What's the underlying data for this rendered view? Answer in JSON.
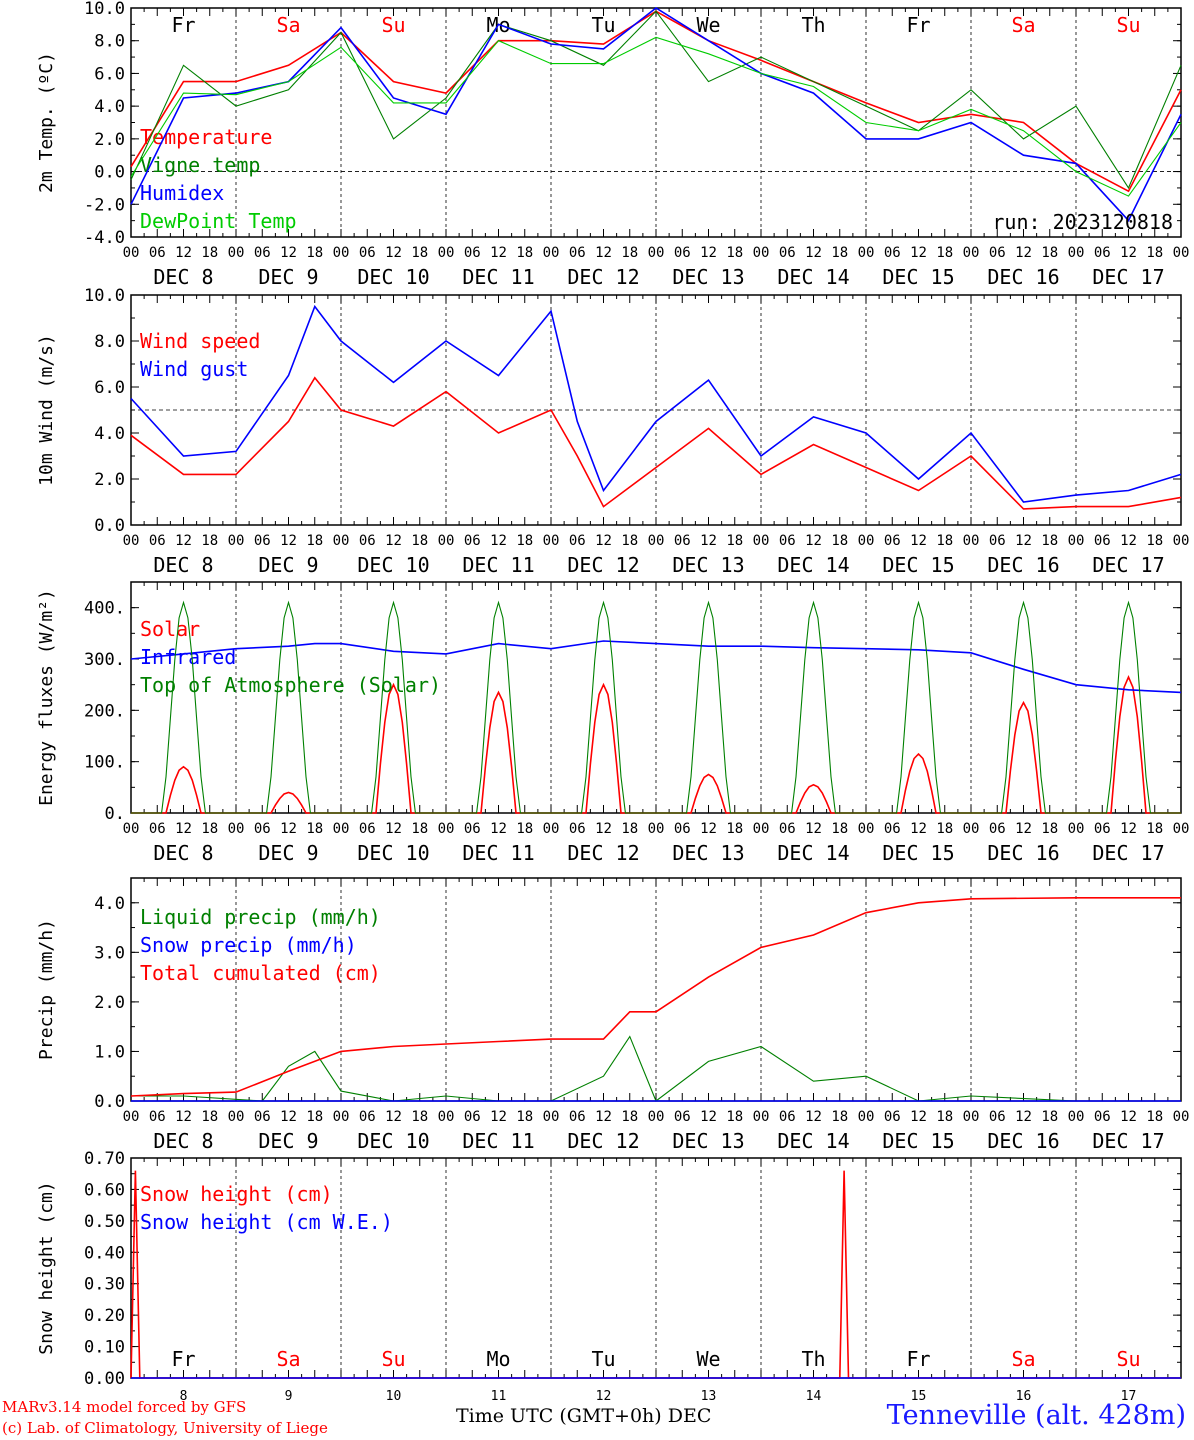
{
  "days": [
    {
      "name": "Fr",
      "date": "DEC  8",
      "num": "8",
      "color": "#000000"
    },
    {
      "name": "Sa",
      "date": "DEC  9",
      "num": "9",
      "color": "#ff0000"
    },
    {
      "name": "Su",
      "date": "DEC 10",
      "num": "10",
      "color": "#ff0000"
    },
    {
      "name": "Mo",
      "date": "DEC 11",
      "num": "11",
      "color": "#000000"
    },
    {
      "name": "Tu",
      "date": "DEC 12",
      "num": "12",
      "color": "#000000"
    },
    {
      "name": "We",
      "date": "DEC 13",
      "num": "13",
      "color": "#000000"
    },
    {
      "name": "Th",
      "date": "DEC 14",
      "num": "14",
      "color": "#000000"
    },
    {
      "name": "Fr",
      "date": "DEC 15",
      "num": "15",
      "color": "#000000"
    },
    {
      "name": "Sa",
      "date": "DEC 16",
      "num": "16",
      "color": "#ff0000"
    },
    {
      "name": "Su",
      "date": "DEC 17",
      "num": "17",
      "color": "#ff0000"
    }
  ],
  "hour_ticks": [
    "00",
    "06",
    "12",
    "18"
  ],
  "footer": {
    "model_line": "MARv3.14 model forced by GFS",
    "copyright_line": "(c) Lab. of Climatology, University of Liege",
    "xlabel": "Time UTC (GMT+0h) DEC",
    "station": "Tenneville (alt. 428m)"
  },
  "chart_data": [
    {
      "type": "line",
      "ylabel": "2m Temp. (ºC)",
      "ylim": [
        -4,
        10
      ],
      "yticks": [
        "-4.0",
        "-2.0",
        "0.0",
        "2.0",
        "4.0",
        "6.0",
        "8.0",
        "10.0"
      ],
      "ytick_values": [
        -4,
        -2,
        0,
        2,
        4,
        6,
        8,
        10
      ],
      "ref_line": 0,
      "run_label": "run: 2023120818",
      "x_hours": [
        0,
        12,
        24,
        36,
        48,
        60,
        72,
        84,
        96,
        108,
        120,
        132,
        144,
        156,
        168,
        180,
        192,
        204,
        216,
        228,
        240
      ],
      "series": [
        {
          "name": "Temperature",
          "color": "#ff0000",
          "values": [
            0.3,
            5.5,
            5.5,
            6.5,
            8.5,
            5.5,
            4.8,
            8.0,
            8.0,
            7.8,
            9.8,
            8.0,
            6.8,
            5.5,
            4.2,
            3.0,
            3.5,
            3.0,
            0.5,
            -1.2,
            5.0
          ]
        },
        {
          "name": "Vigne temp",
          "color": "#008000",
          "values": [
            -0.5,
            6.5,
            4.0,
            5.0,
            8.5,
            2.0,
            4.5,
            9.0,
            8.0,
            6.5,
            9.8,
            5.5,
            7.0,
            5.5,
            4.0,
            2.5,
            5.0,
            2.0,
            4.0,
            -1.0,
            6.5
          ]
        },
        {
          "name": "Humidex",
          "color": "#0000ff",
          "values": [
            -2.0,
            4.5,
            4.8,
            5.5,
            8.8,
            4.5,
            3.5,
            9.0,
            7.8,
            7.5,
            10.0,
            8.0,
            6.0,
            4.8,
            2.0,
            2.0,
            3.0,
            1.0,
            0.5,
            -3.0,
            3.5
          ]
        },
        {
          "name": "DewPoint Temp",
          "color": "#00cc00",
          "values": [
            -0.3,
            4.8,
            4.7,
            5.5,
            7.6,
            4.2,
            4.2,
            8.0,
            6.6,
            6.6,
            8.2,
            7.2,
            6.0,
            5.2,
            3.0,
            2.5,
            3.8,
            2.5,
            0.0,
            -1.5,
            3.0
          ]
        }
      ]
    },
    {
      "type": "line",
      "ylabel": "10m Wind (m/s)",
      "ylim": [
        0,
        10
      ],
      "yticks": [
        "0.0",
        "2.0",
        "4.0",
        "6.0",
        "8.0",
        "10.0"
      ],
      "ytick_values": [
        0,
        2,
        4,
        6,
        8,
        10
      ],
      "ref_line": 5,
      "x_hours": [
        0,
        12,
        24,
        36,
        42,
        48,
        60,
        72,
        84,
        96,
        102,
        108,
        120,
        132,
        144,
        156,
        168,
        180,
        192,
        204,
        216,
        228,
        240
      ],
      "series": [
        {
          "name": "Wind speed",
          "color": "#ff0000",
          "values": [
            3.9,
            2.2,
            2.2,
            4.5,
            6.4,
            5.0,
            4.3,
            5.8,
            4.0,
            5.0,
            3.0,
            0.8,
            2.5,
            4.2,
            2.2,
            3.5,
            2.5,
            1.5,
            3.0,
            0.7,
            0.8,
            0.8,
            1.2
          ]
        },
        {
          "name": "Wind gust",
          "color": "#0000ff",
          "values": [
            5.5,
            3.0,
            3.2,
            6.5,
            9.5,
            8.0,
            6.2,
            8.0,
            6.5,
            9.3,
            4.5,
            1.5,
            4.5,
            6.3,
            3.0,
            4.7,
            4.0,
            2.0,
            4.0,
            1.0,
            1.3,
            1.5,
            2.2
          ]
        }
      ]
    },
    {
      "type": "line",
      "ylabel": "Energy fluxes (W/m²)",
      "ylim": [
        0,
        450
      ],
      "yticks": [
        "0.",
        "100.",
        "200.",
        "300.",
        "400."
      ],
      "ytick_values": [
        0,
        100,
        200,
        300,
        400
      ],
      "toa_peak": 410,
      "solar_peaks": [
        90,
        40,
        250,
        235,
        250,
        75,
        55,
        115,
        215,
        265
      ],
      "series": [
        {
          "name": "Solar",
          "color": "#ff0000"
        },
        {
          "name": "Infrared",
          "color": "#0000ff",
          "x_hours": [
            0,
            12,
            24,
            36,
            42,
            48,
            60,
            72,
            84,
            96,
            108,
            120,
            132,
            144,
            156,
            168,
            180,
            192,
            204,
            216,
            228,
            240
          ],
          "values": [
            300,
            310,
            320,
            325,
            330,
            330,
            315,
            310,
            330,
            320,
            335,
            330,
            325,
            325,
            322,
            320,
            318,
            312,
            280,
            250,
            240,
            235
          ]
        },
        {
          "name": "Top of Atmosphere (Solar)",
          "color": "#008000"
        }
      ]
    },
    {
      "type": "line",
      "ylabel": "Precip (mm/h)",
      "ylim": [
        0,
        4.5
      ],
      "yticks": [
        "0.0",
        "1.0",
        "2.0",
        "3.0",
        "4.0"
      ],
      "ytick_values": [
        0,
        1,
        2,
        3,
        4
      ],
      "series": [
        {
          "name": "Liquid precip (mm/h)",
          "color": "#008000",
          "x_hours": [
            0,
            12,
            30,
            36,
            42,
            48,
            60,
            72,
            84,
            96,
            108,
            114,
            120,
            132,
            144,
            156,
            168,
            180,
            192,
            216,
            240
          ],
          "values": [
            0.1,
            0.1,
            0.0,
            0.7,
            1.0,
            0.2,
            0.0,
            0.1,
            0.0,
            0.0,
            0.5,
            1.3,
            0.0,
            0.8,
            1.1,
            0.4,
            0.5,
            0.0,
            0.1,
            0.0,
            0.0
          ]
        },
        {
          "name": "Snow precip (mm/h)",
          "color": "#0000ff",
          "x_hours": [
            0,
            240
          ],
          "values": [
            0,
            0
          ]
        },
        {
          "name": "Total cumulated (cm)",
          "color": "#ff0000",
          "x_hours": [
            0,
            12,
            24,
            36,
            48,
            60,
            72,
            84,
            96,
            108,
            114,
            120,
            132,
            144,
            156,
            168,
            180,
            192,
            216,
            240
          ],
          "values": [
            0.1,
            0.15,
            0.18,
            0.6,
            1.0,
            1.1,
            1.15,
            1.2,
            1.25,
            1.25,
            1.8,
            1.8,
            2.5,
            3.1,
            3.35,
            3.8,
            4.0,
            4.08,
            4.1,
            4.1
          ]
        }
      ]
    },
    {
      "type": "line",
      "ylabel": "Snow height (cm)",
      "ylim": [
        0,
        0.7
      ],
      "yticks": [
        "0.00",
        "0.10",
        "0.20",
        "0.30",
        "0.40",
        "0.50",
        "0.60",
        "0.70"
      ],
      "ytick_values": [
        0,
        0.1,
        0.2,
        0.3,
        0.4,
        0.5,
        0.6,
        0.7
      ],
      "series": [
        {
          "name": "Snow height (cm)",
          "color": "#ff0000",
          "x_hours": [
            0,
            1,
            2,
            3,
            162,
            163,
            164,
            165,
            240
          ],
          "values": [
            0,
            0.66,
            0,
            0,
            0,
            0.66,
            0,
            0,
            0
          ]
        },
        {
          "name": "Snow height (cm W.E.)",
          "color": "#0000ff",
          "x_hours": [
            0,
            240
          ],
          "values": [
            0,
            0
          ]
        }
      ]
    }
  ]
}
